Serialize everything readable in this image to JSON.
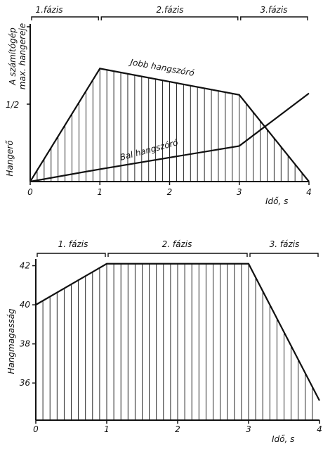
{
  "chart_data": [
    {
      "type": "area",
      "title": "",
      "phases": [
        "1.fázis",
        "2.fázis",
        "3.fázis"
      ],
      "phase_ranges": [
        [
          0,
          1
        ],
        [
          1,
          3
        ],
        [
          3,
          4
        ]
      ],
      "xlabel": "Idő, s",
      "ylabel_lines": [
        "A számítógép",
        "max. hangereje",
        "Hangerő"
      ],
      "xticks": [
        "0",
        "1",
        "2",
        "3",
        "4"
      ],
      "ytick_labels": [
        "1/2"
      ],
      "xlim": [
        0,
        4
      ],
      "ylim": [
        0,
        1
      ],
      "ylim_max_label": "A számítógép max. hangereje",
      "series": [
        {
          "name": "Jobb hangszóró",
          "x": [
            0,
            1,
            3,
            4
          ],
          "values": [
            0,
            0.73,
            0.56,
            0
          ],
          "hatched": true
        },
        {
          "name": "Bal hangszóró",
          "x": [
            0,
            1,
            3,
            4
          ],
          "values": [
            0,
            0.08,
            0.23,
            0.57
          ],
          "hatched": false
        }
      ]
    },
    {
      "type": "area",
      "title": "",
      "phases": [
        "1. fázis",
        "2. fázis",
        "3. fázis"
      ],
      "phase_ranges": [
        [
          0,
          1
        ],
        [
          1,
          3
        ],
        [
          3,
          4
        ]
      ],
      "xlabel": "Idő, s",
      "ylabel": "Hangmagasság",
      "xticks": [
        "0",
        "1",
        "2",
        "3",
        "4"
      ],
      "yticks": [
        "36",
        "38",
        "40",
        "42"
      ],
      "xlim": [
        0,
        4
      ],
      "ylim": [
        34.1,
        42.2
      ],
      "series": [
        {
          "x": [
            0,
            1,
            3,
            4
          ],
          "values": [
            40,
            42.1,
            42.1,
            35.1
          ],
          "hatched": true
        }
      ]
    }
  ]
}
